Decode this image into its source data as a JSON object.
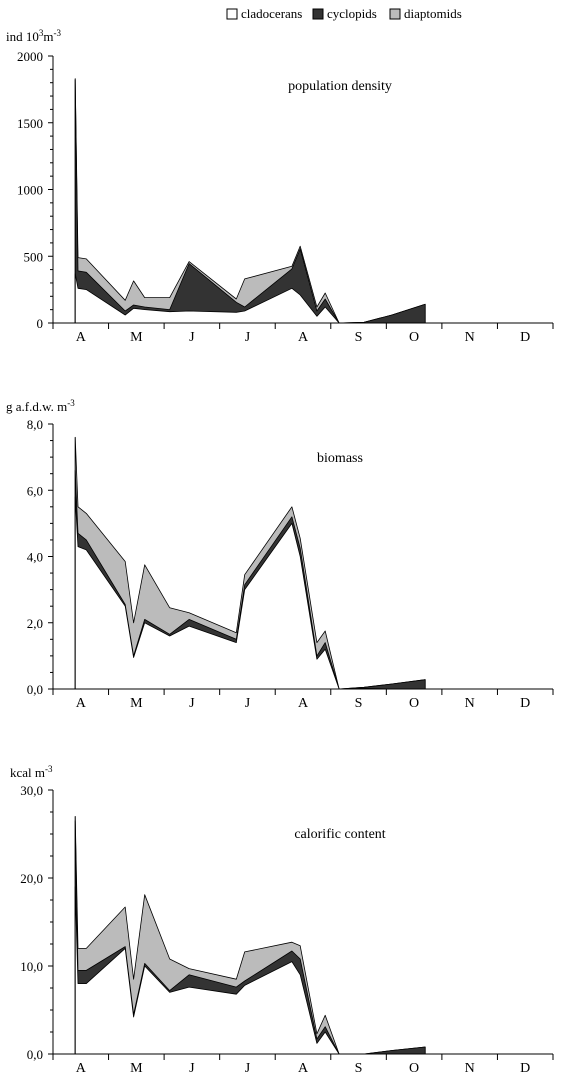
{
  "legend": {
    "placement": "top-center",
    "items": [
      {
        "label": "cladocerans",
        "color": "#ffffff"
      },
      {
        "label": "cyclopids",
        "color": "#333333"
      },
      {
        "label": "diaptomids",
        "color": "#bbbbbb"
      }
    ]
  },
  "chart_data": [
    {
      "type": "area",
      "stacked": true,
      "title": "population density",
      "ylabel": "ind 10³m⁻³",
      "ylabel_parts": {
        "pre": "ind 10",
        "sup1": "3",
        "mid": "m",
        "sup2": "-3"
      },
      "ylim": [
        0,
        2000
      ],
      "yticks": [
        0,
        500,
        1000,
        1500,
        2000
      ],
      "ytick_labels": [
        "0",
        "500",
        "1000",
        "1500",
        "2000"
      ],
      "months": [
        "A",
        "M",
        "J",
        "J",
        "A",
        "S",
        "O",
        "N",
        "D"
      ],
      "xlim": [
        0,
        9
      ],
      "x": [
        0.4,
        0.45,
        0.6,
        1.3,
        1.45,
        1.65,
        2.1,
        2.45,
        3.3,
        3.45,
        4.3,
        4.45,
        4.75,
        4.9,
        5.15,
        5.6,
        6.1,
        6.7
      ],
      "series": [
        {
          "name": "cladocerans",
          "values": [
            370,
            260,
            250,
            60,
            110,
            100,
            85,
            90,
            80,
            90,
            260,
            210,
            50,
            120,
            0,
            0,
            0,
            0
          ]
        },
        {
          "name": "cyclopids",
          "values": [
            1450,
            130,
            130,
            30,
            25,
            20,
            15,
            355,
            75,
            30,
            145,
            345,
            40,
            60,
            0,
            5,
            60,
            140
          ]
        },
        {
          "name": "diaptomids",
          "values": [
            10,
            100,
            100,
            80,
            180,
            70,
            90,
            15,
            25,
            210,
            20,
            20,
            30,
            45,
            0,
            0,
            0,
            0
          ]
        }
      ]
    },
    {
      "type": "area",
      "stacked": true,
      "title": "biomass",
      "ylabel": "g a.f.d.w. m⁻³",
      "ylabel_parts": {
        "pre": "g a.f.d.w. m",
        "sup1": "-3",
        "mid": "",
        "sup2": ""
      },
      "ylim": [
        0,
        8
      ],
      "yticks": [
        0,
        2,
        4,
        6,
        8
      ],
      "ytick_labels": [
        "0,0",
        "2,0",
        "4,0",
        "6,0",
        "8,0"
      ],
      "months": [
        "A",
        "M",
        "J",
        "J",
        "A",
        "S",
        "O",
        "N",
        "D"
      ],
      "xlim": [
        0,
        9
      ],
      "x": [
        0.4,
        0.45,
        0.6,
        1.3,
        1.45,
        1.65,
        2.1,
        2.45,
        3.3,
        3.45,
        4.3,
        4.45,
        4.75,
        4.9,
        5.15,
        5.6,
        6.1,
        6.7
      ],
      "series": [
        {
          "name": "cladocerans",
          "values": [
            5.8,
            4.3,
            4.2,
            2.5,
            0.95,
            2.0,
            1.6,
            1.9,
            1.4,
            3.0,
            5.0,
            4.0,
            0.9,
            1.2,
            0.0,
            0.02,
            0.0,
            0.0
          ]
        },
        {
          "name": "cyclopids",
          "values": [
            0.8,
            0.4,
            0.3,
            0.05,
            0.05,
            0.1,
            0.05,
            0.2,
            0.1,
            0.15,
            0.2,
            0.25,
            0.1,
            0.2,
            0.0,
            0.03,
            0.15,
            0.28
          ]
        },
        {
          "name": "diaptomids",
          "values": [
            1.0,
            0.8,
            0.8,
            1.3,
            1.0,
            1.65,
            0.8,
            0.2,
            0.2,
            0.3,
            0.3,
            0.3,
            0.4,
            0.35,
            0.0,
            0.0,
            0.0,
            0.0
          ]
        }
      ]
    },
    {
      "type": "area",
      "stacked": true,
      "title": "calorific content",
      "ylabel": "kcal m⁻³",
      "ylabel_parts": {
        "pre": "kcal m",
        "sup1": "-3",
        "mid": "",
        "sup2": ""
      },
      "ylim": [
        0,
        30
      ],
      "yticks": [
        0,
        10,
        20,
        30
      ],
      "ytick_labels": [
        "0,0",
        "10,0",
        "20,0",
        "30,0"
      ],
      "months": [
        "A",
        "M",
        "J",
        "J",
        "A",
        "S",
        "O",
        "N",
        "D"
      ],
      "xlim": [
        0,
        9
      ],
      "x": [
        0.4,
        0.45,
        0.6,
        1.3,
        1.45,
        1.65,
        2.1,
        2.45,
        3.3,
        3.45,
        4.3,
        4.45,
        4.75,
        4.9,
        5.15,
        5.6,
        6.1,
        6.7
      ],
      "series": [
        {
          "name": "cladocerans",
          "values": [
            19,
            8.0,
            8.0,
            12.0,
            4.2,
            10.0,
            7.0,
            7.6,
            6.8,
            7.8,
            10.5,
            9.0,
            1.2,
            2.5,
            0.0,
            0.0,
            0.0,
            0.0
          ]
        },
        {
          "name": "cyclopids",
          "values": [
            7.5,
            1.5,
            1.5,
            0.2,
            0.3,
            0.3,
            0.2,
            1.4,
            0.8,
            0.5,
            1.2,
            1.8,
            0.5,
            0.6,
            0.0,
            0.0,
            0.4,
            0.8
          ]
        },
        {
          "name": "diaptomids",
          "values": [
            0.5,
            2.5,
            2.5,
            4.5,
            4.0,
            7.8,
            3.6,
            0.7,
            0.9,
            3.3,
            1.0,
            1.5,
            0.6,
            1.3,
            0.0,
            0.0,
            0.0,
            0.0
          ]
        }
      ]
    }
  ]
}
